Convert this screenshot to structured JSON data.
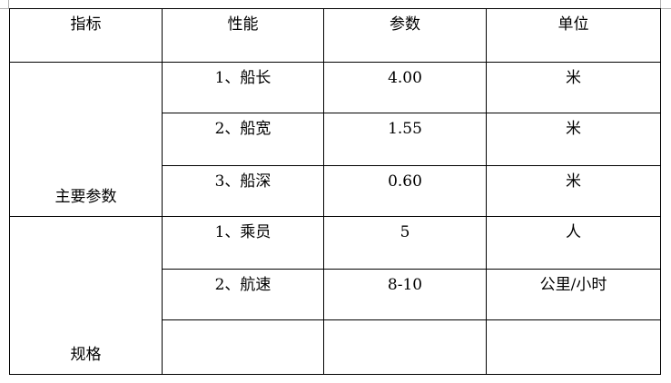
{
  "headers": [
    "指标",
    "性能",
    "参数",
    "单位"
  ],
  "groups": [
    {
      "label": "主要参数",
      "rows": [
        {
          "item": "1、船长",
          "value": "4.00",
          "unit": "米"
        },
        {
          "item": "2、船宽",
          "value": "1.55",
          "unit": "米"
        },
        {
          "item": "3、船深",
          "value": "0.60",
          "unit": "米"
        }
      ]
    },
    {
      "label": "规格",
      "rows": [
        {
          "item": "1、乘员",
          "value": "5",
          "unit": "人"
        },
        {
          "item": "2、航速",
          "value": "8-10",
          "unit": "公里/小时"
        },
        {
          "item": "",
          "value": "",
          "unit": ""
        }
      ]
    }
  ]
}
